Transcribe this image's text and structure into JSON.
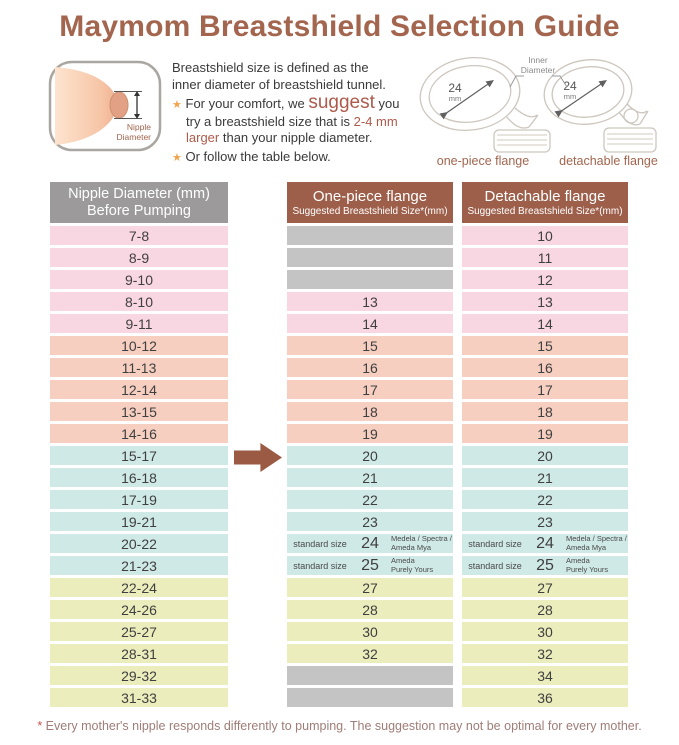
{
  "colors": {
    "title": "#a3654e",
    "header_brown": "#9d5f4a",
    "header_gray": "#9c9a9a",
    "row_pink": "#f8d7e2",
    "row_salmon": "#f6cfc1",
    "row_blue": "#cfe9e6",
    "row_yellow": "#ecedbc",
    "row_gray": "#c4c4c4",
    "accent": "#ad5a4b",
    "star": "#f0a44f",
    "arrow": "#9a5a43",
    "footnote": "#9f7d77"
  },
  "title": "Maymom Breastshield Selection Guide",
  "intro": {
    "breast_label_1": "Nipple",
    "breast_label_2": "Diameter",
    "line1": "Breastshield size is defined as the",
    "line2": "inner diameter of breastshield tunnel.",
    "star": "★",
    "line3_pre": "For your comfort, we ",
    "suggest": "suggest",
    "line3_post": " you",
    "line4": "try a breastshield size that is ",
    "accent_mm": "2-4 mm",
    "accent_larger": "larger",
    "line5": " than your nipple diameter.",
    "line6": "Or follow the table below."
  },
  "flange_figure": {
    "inner_diameter_line1": "Inner",
    "inner_diameter_line2": "Diameter",
    "size_left": "24",
    "unit_left": "mm",
    "size_right": "24",
    "unit_right": "mm",
    "caption_left": "one-piece flange",
    "caption_right": "detachable flange"
  },
  "table": {
    "header_nipple": {
      "line1": "Nipple Diameter (mm)",
      "line2": "Before Pumping"
    },
    "header_one_piece": {
      "line1": "One-piece flange",
      "line2": "Suggested Breastshield Size*(mm)"
    },
    "header_detachable": {
      "line1": "Detachable flange",
      "line2": "Suggested Breastshield Size*(mm)"
    },
    "standard_size_label": "standard size",
    "rows": [
      {
        "nipple": "7-8",
        "group": "pink",
        "one": {
          "type": "empty"
        },
        "det": {
          "type": "size",
          "value": "10"
        }
      },
      {
        "nipple": "8-9",
        "group": "pink",
        "one": {
          "type": "empty"
        },
        "det": {
          "type": "size",
          "value": "11"
        }
      },
      {
        "nipple": "9-10",
        "group": "pink",
        "one": {
          "type": "empty"
        },
        "det": {
          "type": "size",
          "value": "12"
        }
      },
      {
        "nipple": "8-10",
        "group": "pink",
        "one": {
          "type": "size",
          "value": "13"
        },
        "det": {
          "type": "size",
          "value": "13"
        }
      },
      {
        "nipple": "9-11",
        "group": "pink",
        "one": {
          "type": "size",
          "value": "14"
        },
        "det": {
          "type": "size",
          "value": "14"
        }
      },
      {
        "nipple": "10-12",
        "group": "salmon",
        "one": {
          "type": "size",
          "value": "15"
        },
        "det": {
          "type": "size",
          "value": "15"
        }
      },
      {
        "nipple": "11-13",
        "group": "salmon",
        "one": {
          "type": "size",
          "value": "16"
        },
        "det": {
          "type": "size",
          "value": "16"
        }
      },
      {
        "nipple": "12-14",
        "group": "salmon",
        "one": {
          "type": "size",
          "value": "17"
        },
        "det": {
          "type": "size",
          "value": "17"
        }
      },
      {
        "nipple": "13-15",
        "group": "salmon",
        "one": {
          "type": "size",
          "value": "18"
        },
        "det": {
          "type": "size",
          "value": "18"
        }
      },
      {
        "nipple": "14-16",
        "group": "salmon",
        "one": {
          "type": "size",
          "value": "19"
        },
        "det": {
          "type": "size",
          "value": "19"
        }
      },
      {
        "nipple": "15-17",
        "group": "blue",
        "one": {
          "type": "size",
          "value": "20"
        },
        "det": {
          "type": "size",
          "value": "20"
        }
      },
      {
        "nipple": "16-18",
        "group": "blue",
        "one": {
          "type": "size",
          "value": "21"
        },
        "det": {
          "type": "size",
          "value": "21"
        }
      },
      {
        "nipple": "17-19",
        "group": "blue",
        "one": {
          "type": "size",
          "value": "22"
        },
        "det": {
          "type": "size",
          "value": "22"
        }
      },
      {
        "nipple": "19-21",
        "group": "blue",
        "one": {
          "type": "size",
          "value": "23"
        },
        "det": {
          "type": "size",
          "value": "23"
        }
      },
      {
        "nipple": "20-22",
        "group": "blue",
        "one": {
          "type": "standard",
          "value": "24",
          "brand_line1": "Medela / Spectra /",
          "brand_line2": "Ameda Mya"
        },
        "det": {
          "type": "standard",
          "value": "24",
          "brand_line1": "Medela / Spectra /",
          "brand_line2": "Ameda Mya"
        }
      },
      {
        "nipple": "21-23",
        "group": "blue",
        "one": {
          "type": "standard",
          "value": "25",
          "brand_line1": "Ameda",
          "brand_line2": "Purely Yours"
        },
        "det": {
          "type": "standard",
          "value": "25",
          "brand_line1": "Ameda",
          "brand_line2": "Purely Yours"
        }
      },
      {
        "nipple": "22-24",
        "group": "yellow",
        "one": {
          "type": "size",
          "value": "27"
        },
        "det": {
          "type": "size",
          "value": "27"
        }
      },
      {
        "nipple": "24-26",
        "group": "yellow",
        "one": {
          "type": "size",
          "value": "28"
        },
        "det": {
          "type": "size",
          "value": "28"
        }
      },
      {
        "nipple": "25-27",
        "group": "yellow",
        "one": {
          "type": "size",
          "value": "30"
        },
        "det": {
          "type": "size",
          "value": "30"
        }
      },
      {
        "nipple": "28-31",
        "group": "yellow",
        "one": {
          "type": "size",
          "value": "32"
        },
        "det": {
          "type": "size",
          "value": "32"
        }
      },
      {
        "nipple": "29-32",
        "group": "yellow",
        "one": {
          "type": "empty"
        },
        "det": {
          "type": "size",
          "value": "34"
        }
      },
      {
        "nipple": "31-33",
        "group": "yellow",
        "one": {
          "type": "empty"
        },
        "det": {
          "type": "size",
          "value": "36"
        }
      }
    ]
  },
  "footnote": {
    "star": "*",
    "text": " Every mother's nipple responds differently to pumping. The suggestion may not be optimal for every mother."
  }
}
